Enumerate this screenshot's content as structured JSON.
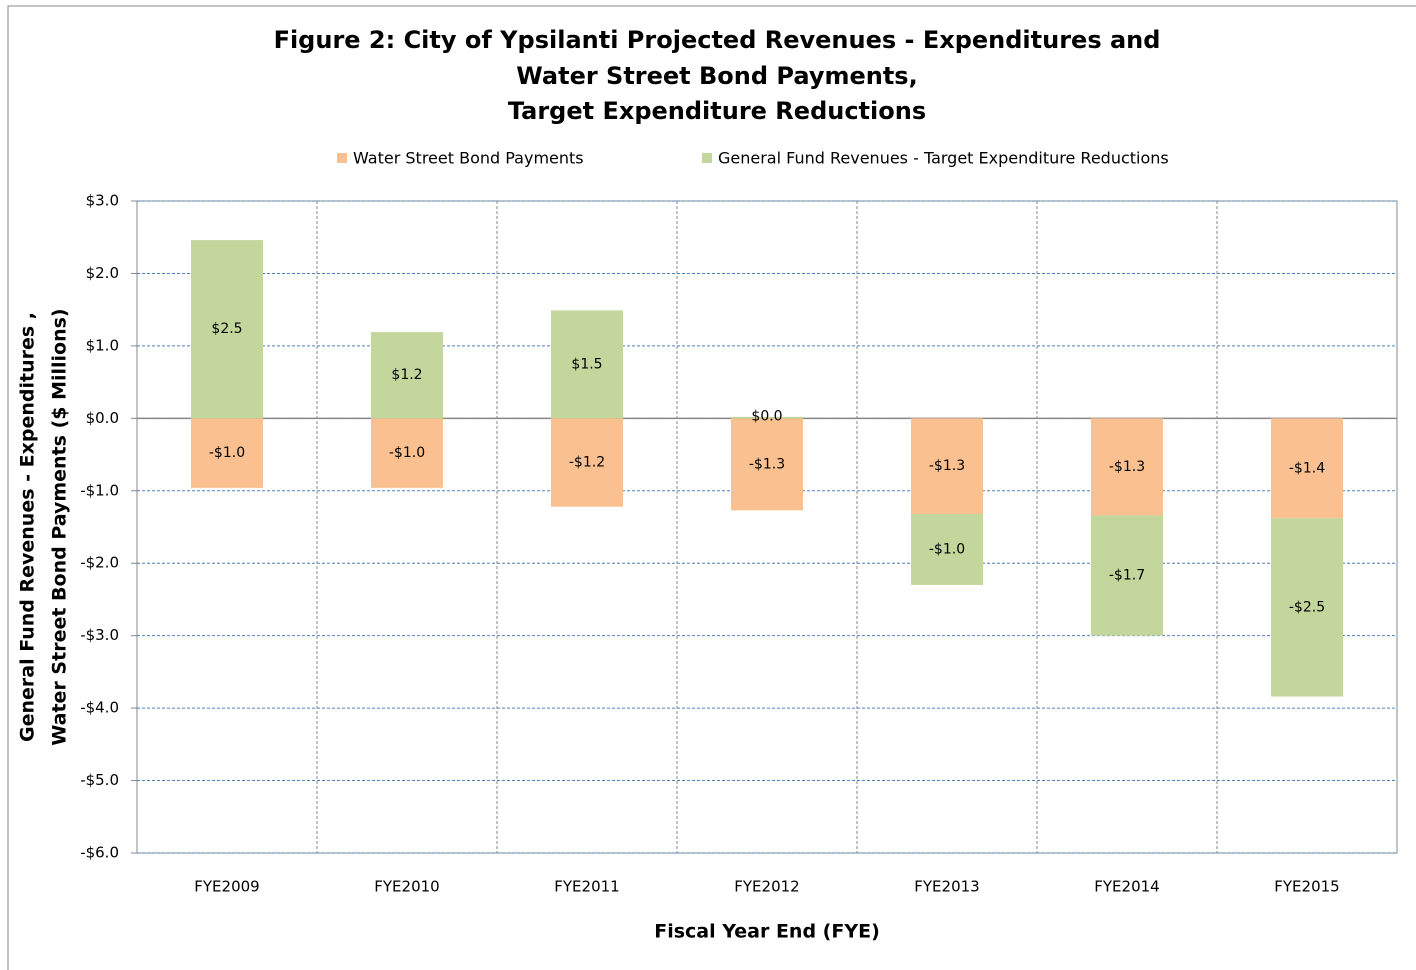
{
  "chart_data": {
    "type": "bar",
    "stacked": true,
    "title": [
      "Figure 2:  City of Ypsilanti Projected Revenues - Expenditures and",
      "Water Street Bond Payments,",
      "Target Expenditure Reductions"
    ],
    "x_label": "Fiscal Year End (FYE)",
    "y_label": [
      "General Fund Revenues - Expenditures ,",
      "Water Street Bond Payments ($ Millions)"
    ],
    "categories": [
      "FYE2009",
      "FYE2010",
      "FYE2011",
      "FYE2012",
      "FYE2013",
      "FYE2014",
      "FYE2015"
    ],
    "series": [
      {
        "name": "Water Street Bond Payments",
        "color": "#fac090",
        "values": [
          -0.96,
          -0.96,
          -1.22,
          -1.27,
          -1.32,
          -1.34,
          -1.38
        ],
        "value_labels": [
          "-$1.0",
          "-$1.0",
          "-$1.2",
          "-$1.3",
          "-$1.3",
          "-$1.3",
          "-$1.4"
        ]
      },
      {
        "name": "General Fund Revenues - Target Expenditure Reductions",
        "color": "#c3d69b",
        "values": [
          2.46,
          1.19,
          1.49,
          0.02,
          -0.98,
          -1.66,
          -2.46
        ],
        "value_labels": [
          "$2.5",
          "$1.2",
          "$1.5",
          "$0.0",
          "-$1.0",
          "-$1.7",
          "-$2.5"
        ]
      }
    ],
    "ylim": [
      -6,
      3
    ],
    "yticks": [
      {
        "value": 3,
        "label": "$3.0"
      },
      {
        "value": 2,
        "label": "$2.0"
      },
      {
        "value": 1,
        "label": "$1.0"
      },
      {
        "value": 0,
        "label": "$0.0"
      },
      {
        "value": -1,
        "label": "-$1.0"
      },
      {
        "value": -2,
        "label": "-$2.0"
      },
      {
        "value": -3,
        "label": "-$3.0"
      },
      {
        "value": -4,
        "label": "-$4.0"
      },
      {
        "value": -5,
        "label": "-$5.0"
      },
      {
        "value": -6,
        "label": "-$6.0"
      }
    ],
    "grid": true,
    "legend": "top"
  }
}
